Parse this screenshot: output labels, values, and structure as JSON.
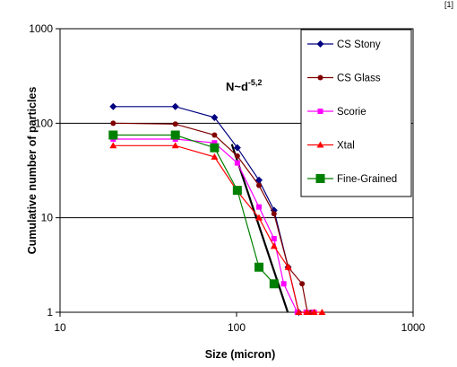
{
  "page": {
    "corner_label": "[1]"
  },
  "chart_data": {
    "type": "scatter",
    "title": "",
    "xlabel": "Size (micron)",
    "ylabel": "Cumulative number of particles",
    "x_scale": "log",
    "y_scale": "log",
    "xlim": [
      10,
      1000
    ],
    "ylim": [
      1,
      1000
    ],
    "x_ticks": [
      "10",
      "100",
      "1000"
    ],
    "y_ticks": [
      "1",
      "10",
      "100",
      "1000"
    ],
    "grid": "horizontal major gridlines",
    "legend_position": "right, inside plot",
    "annotation": {
      "base": "N~d",
      "exponent": "-5,2"
    },
    "fit_line": {
      "x": [
        94,
        195
      ],
      "y": [
        60,
        1
      ]
    },
    "series": [
      {
        "name": "CS Stony",
        "color": "#000080",
        "marker": "diamond",
        "x": [
          20,
          45,
          75,
          101,
          134,
          163,
          196,
          225
        ],
        "y": [
          150,
          150,
          115,
          55,
          25,
          12,
          3,
          1
        ]
      },
      {
        "name": "CS Glass",
        "color": "#800000",
        "marker": "circle",
        "x": [
          20,
          45,
          75,
          101,
          134,
          163,
          196,
          235,
          252,
          265
        ],
        "y": [
          100,
          98,
          75,
          45,
          22,
          11,
          3,
          2,
          1,
          1
        ]
      },
      {
        "name": "Scorie",
        "color": "#ff00ff",
        "marker": "square",
        "x": [
          20,
          45,
          75,
          101,
          134,
          163,
          185,
          221,
          248,
          275
        ],
        "y": [
          68,
          68,
          62,
          38,
          13,
          6,
          2,
          1,
          1,
          1
        ]
      },
      {
        "name": "Xtal",
        "color": "#ff0000",
        "marker": "triangle",
        "x": [
          20,
          45,
          75,
          101,
          134,
          163,
          196,
          225,
          250,
          275,
          305
        ],
        "y": [
          58,
          58,
          44,
          19,
          10,
          5,
          3,
          1,
          1,
          1,
          1
        ]
      },
      {
        "name": "Fine-Grained",
        "color": "#008000",
        "marker": "square-large",
        "x": [
          20,
          45,
          75,
          101,
          134,
          163
        ],
        "y": [
          75,
          75,
          55,
          19.5,
          3,
          2
        ]
      }
    ]
  }
}
